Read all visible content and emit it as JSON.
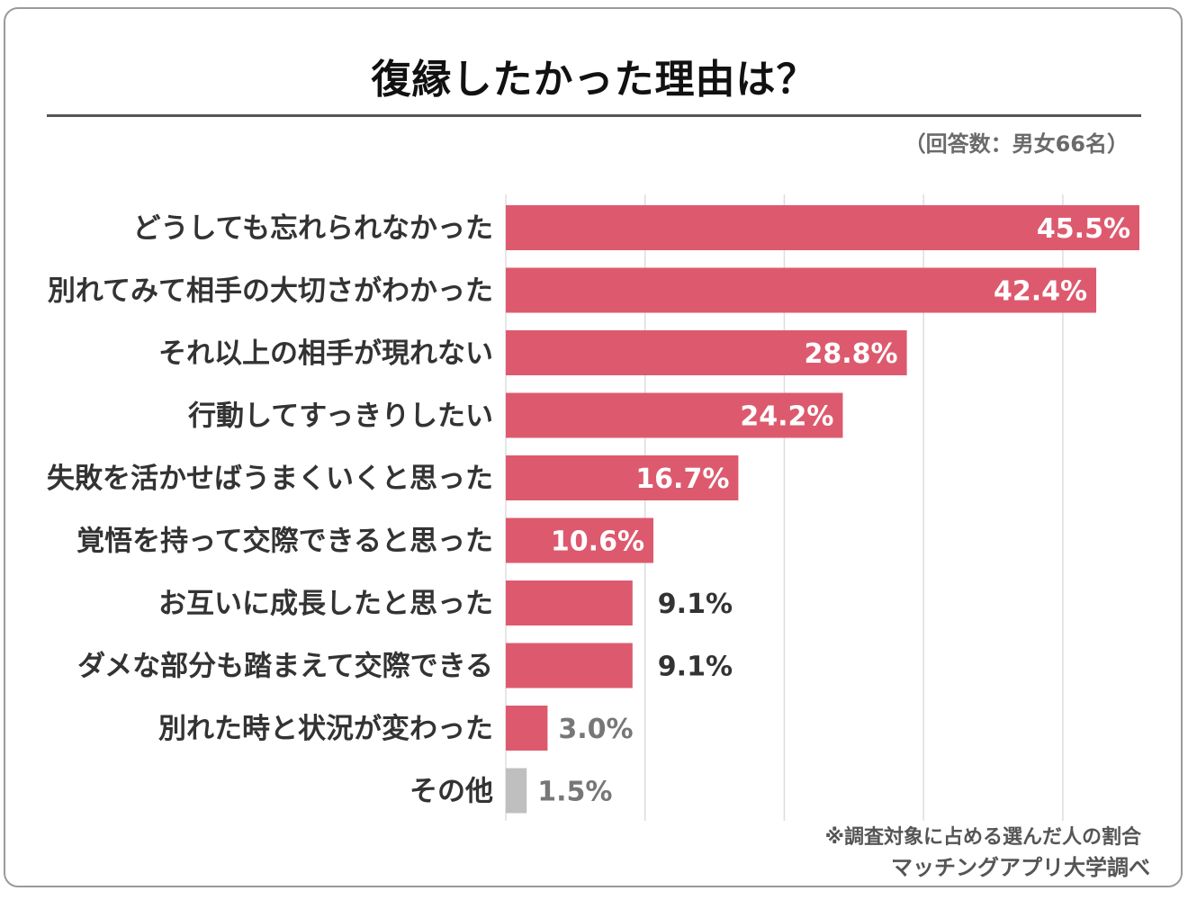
{
  "chart_data": {
    "type": "bar",
    "orientation": "horizontal",
    "title": "復縁したかった理由は？",
    "respondents": "（回答数：男女66名）",
    "categories": [
      "どうしても忘れられなかった",
      "別れてみて相手の大切さがわかった",
      "それ以上の相手が現れない",
      "行動してすっきりしたい",
      "失敗を活かせばうまくいくと思った",
      "覚悟を持って交際できると思った",
      "お互いに成長したと思った",
      "ダメな部分も踏まえて交際できる",
      "別れた時と状況が変わった",
      "その他"
    ],
    "values": [
      45.5,
      42.4,
      28.8,
      24.2,
      16.7,
      10.6,
      9.1,
      9.1,
      3.0,
      1.5
    ],
    "value_labels": [
      "45.5%",
      "42.4%",
      "28.8%",
      "24.2%",
      "16.7%",
      "10.6%",
      "9.1%",
      "9.1%",
      "3.0%",
      "1.5%"
    ],
    "unit": "%",
    "xlim": [
      0,
      45.5
    ],
    "gridlines": [
      0,
      10,
      20,
      30,
      40
    ],
    "grid": true,
    "legend": "none",
    "colors": {
      "bar": "#dd5a6e",
      "other_bar": "#bfbfbf",
      "grid": "#dddddd",
      "label_inside": "#ffffff",
      "label_outside": "#333333",
      "label_outside_small": "#777777"
    }
  },
  "footer": {
    "note": "※調査対象に占める選んだ人の割合",
    "source": "マッチングアプリ大学調べ"
  }
}
